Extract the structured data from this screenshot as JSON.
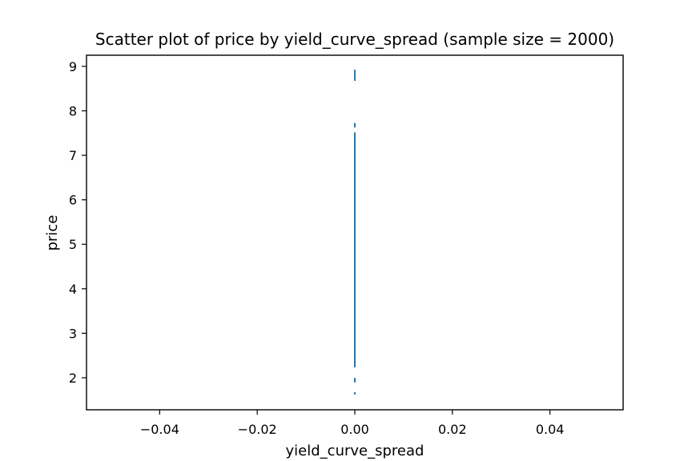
{
  "chart_data": {
    "type": "scatter",
    "title": "Scatter plot of price by yield_curve_spread (sample size = 2000)",
    "xlabel": "yield_curve_spread",
    "ylabel": "price",
    "xlim": [
      -0.055,
      0.055
    ],
    "ylim": [
      1.28,
      9.25
    ],
    "xticks": [
      -0.04,
      -0.02,
      0.0,
      0.02,
      0.04
    ],
    "xtick_labels": [
      "−0.04",
      "−0.02",
      "0.00",
      "0.02",
      "0.04"
    ],
    "yticks": [
      2,
      3,
      4,
      5,
      6,
      7,
      8,
      9
    ],
    "ytick_labels": [
      "2",
      "3",
      "4",
      "5",
      "6",
      "7",
      "8",
      "9"
    ],
    "grid": false,
    "legend": "none",
    "marker_color": "#1f77b4",
    "x": 0.0,
    "y_dense_range": [
      2.25,
      7.5
    ],
    "y_sparse_points": [
      1.65,
      1.92,
      1.97,
      4.35,
      4.25,
      4.16,
      4.07,
      7.65,
      7.7,
      8.7,
      8.75,
      8.8,
      8.85,
      8.9
    ]
  }
}
